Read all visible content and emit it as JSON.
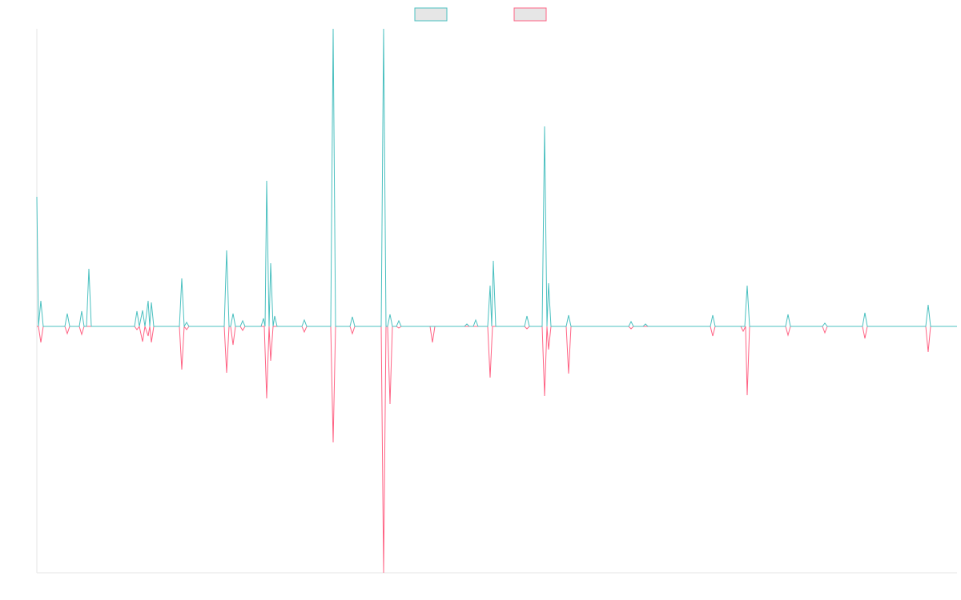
{
  "chart_data": {
    "type": "line",
    "legend": "top",
    "xlim": [
      0,
      1149
    ],
    "ylim": [
      -308,
      372
    ],
    "series": [
      {
        "color": "#4bc0c0",
        "x": [
          0,
          2,
          5,
          8,
          35,
          38,
          41,
          53,
          56,
          59,
          62,
          65,
          68,
          122,
          125,
          128,
          132,
          135,
          139,
          141,
          143,
          146,
          178,
          181,
          184,
          187,
          190,
          234,
          237,
          240,
          242,
          245,
          248,
          254,
          257,
          260,
          280,
          283,
          285,
          287,
          290,
          292,
          295,
          297,
          300,
          331,
          334,
          337,
          367,
          370,
          373,
          391,
          394,
          397,
          430,
          433,
          436,
          438,
          441,
          444,
          449,
          452,
          455,
          534,
          537,
          540,
          545,
          548,
          551,
          563,
          566,
          568,
          570,
          573,
          609,
          612,
          615,
          631,
          634,
          637,
          639,
          642,
          661,
          664,
          667,
          739,
          742,
          745,
          757,
          760,
          763,
          841,
          844,
          847,
          884,
          887,
          890,
          935,
          938,
          941,
          981,
          984,
          987,
          1031,
          1034,
          1037,
          1110,
          1113,
          1116,
          1149
        ],
        "values": [
          162,
          0,
          32,
          0,
          0,
          16,
          0,
          0,
          19,
          0,
          0,
          72,
          0,
          0,
          19,
          0,
          20,
          0,
          32,
          0,
          30,
          0,
          0,
          60,
          0,
          5,
          0,
          0,
          95,
          0,
          0,
          16,
          0,
          0,
          7,
          0,
          0,
          10,
          0,
          182,
          0,
          79,
          0,
          13,
          0,
          0,
          8,
          0,
          0,
          372,
          0,
          0,
          12,
          0,
          0,
          372,
          0,
          0,
          15,
          0,
          0,
          7,
          0,
          0,
          3,
          0,
          0,
          8,
          0,
          0,
          51,
          0,
          82,
          0,
          0,
          13,
          0,
          0,
          250,
          0,
          54,
          0,
          0,
          14,
          0,
          0,
          6,
          0,
          0,
          3,
          0,
          0,
          14,
          0,
          0,
          51,
          0,
          0,
          15,
          0,
          0,
          4,
          0,
          0,
          17,
          0,
          0,
          27,
          0,
          0
        ]
      },
      {
        "color": "#ff6384",
        "x": [
          0,
          2,
          5,
          8,
          35,
          38,
          41,
          53,
          56,
          59,
          122,
          125,
          128,
          132,
          135,
          139,
          141,
          143,
          146,
          178,
          181,
          184,
          187,
          190,
          234,
          237,
          240,
          242,
          245,
          248,
          254,
          257,
          260,
          284,
          287,
          290,
          292,
          295,
          331,
          334,
          337,
          367,
          370,
          373,
          391,
          394,
          397,
          430,
          433,
          436,
          438,
          441,
          444,
          449,
          452,
          455,
          491,
          494,
          497,
          563,
          566,
          569,
          609,
          612,
          615,
          631,
          634,
          637,
          639,
          642,
          661,
          664,
          667,
          739,
          742,
          745,
          841,
          844,
          847,
          879,
          882,
          885,
          887,
          890,
          935,
          938,
          941,
          981,
          984,
          987,
          1031,
          1034,
          1037,
          1110,
          1113,
          1116,
          1149
        ],
        "values": [
          0,
          0,
          -20,
          0,
          0,
          -9,
          0,
          0,
          -10,
          0,
          0,
          -4,
          0,
          -19,
          0,
          -12,
          0,
          -20,
          0,
          0,
          -54,
          0,
          -4,
          0,
          0,
          -58,
          0,
          0,
          -23,
          0,
          0,
          -5,
          0,
          0,
          -90,
          0,
          -43,
          0,
          0,
          -7,
          0,
          0,
          -145,
          0,
          0,
          -9,
          0,
          0,
          -308,
          0,
          0,
          -97,
          0,
          0,
          -2,
          0,
          0,
          -20,
          0,
          0,
          -64,
          0,
          0,
          -3,
          0,
          0,
          -87,
          0,
          -29,
          0,
          0,
          -59,
          0,
          0,
          -3,
          0,
          0,
          -12,
          0,
          0,
          -6,
          0,
          -86,
          0,
          0,
          -11,
          0,
          0,
          -8,
          0,
          0,
          -15,
          0,
          0,
          -32,
          0,
          0
        ]
      }
    ]
  }
}
